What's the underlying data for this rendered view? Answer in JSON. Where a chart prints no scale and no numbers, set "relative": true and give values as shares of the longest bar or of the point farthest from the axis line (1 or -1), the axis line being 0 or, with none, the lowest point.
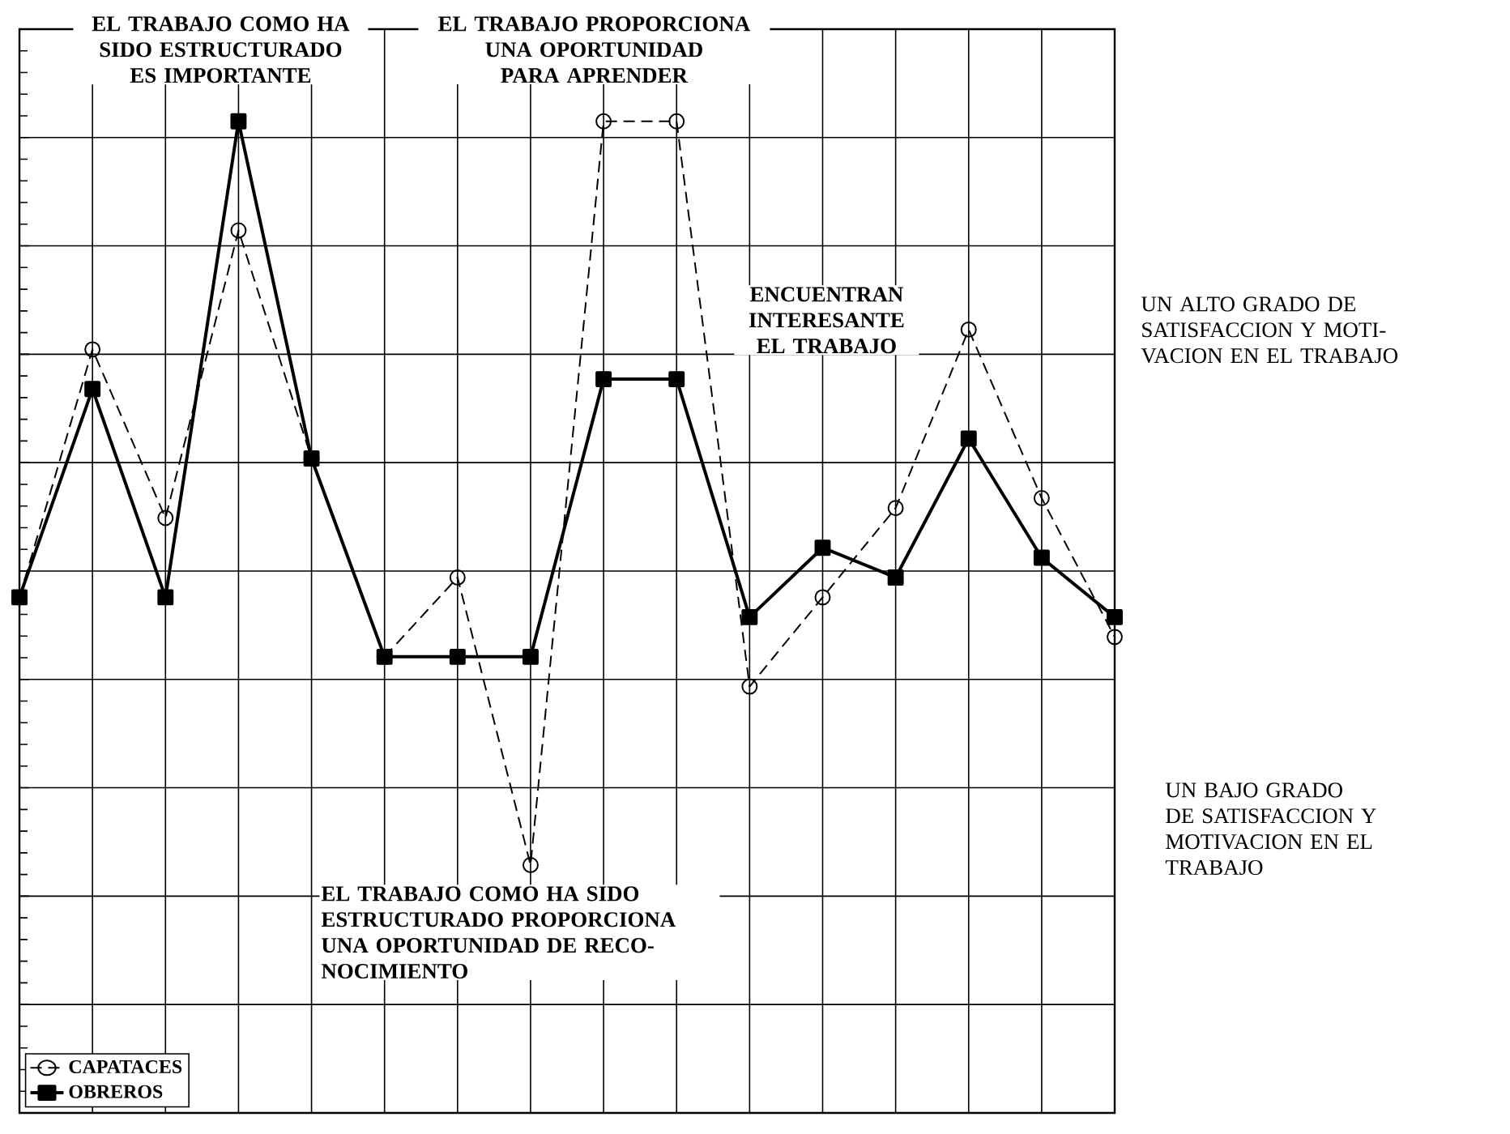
{
  "chart_data": {
    "type": "line",
    "relative": true,
    "categories": [
      null,
      null,
      null,
      null,
      null,
      null,
      null,
      null,
      null,
      null,
      null,
      null,
      null,
      null,
      null,
      null
    ],
    "series": [
      {
        "name": "OBREROS",
        "color": "#000000",
        "marker": "square",
        "line_style": "solid",
        "values": [
          0.52,
          0.73,
          0.52,
          1,
          0.66,
          0.46,
          0.46,
          0.46,
          0.74,
          0.74,
          0.5,
          0.57,
          0.54,
          0.68,
          0.56,
          0.5
        ]
      },
      {
        "name": "CAPATACES",
        "color": "#000000",
        "marker": "circle",
        "line_style": "dashed",
        "values": [
          0.52,
          0.77,
          0.6,
          0.89,
          0.66,
          0.46,
          0.54,
          0.25,
          1,
          1,
          0.43,
          0.52,
          0.61,
          0.79,
          0.62,
          0.48
        ]
      }
    ],
    "grid": true,
    "legend": "bottom left",
    "annotations": [
      "EL TRABAJO COMO HA SIDO ESTRUCTURADO ES IMPORTANTE",
      "EL TRABAJO PROPORCIONA UNA OPORTUNIDAD PARA APRENDER",
      "ENCUENTRAN INTERESANTE EL TRABAJO",
      "EL TRABAJO COMO HA SIDO ESTRUCTURADO PROPORCIONA UNA OPORTUNIDAD DE RECO-NOCIMIENTO",
      "UN ALTO GRADO DE SATISFACCION Y MOTI-VACION EN EL TRABAJO",
      "UN BAJO GRADO DE SATISFACCION Y MOTIVACION EN EL TRABAJO"
    ]
  }
}
